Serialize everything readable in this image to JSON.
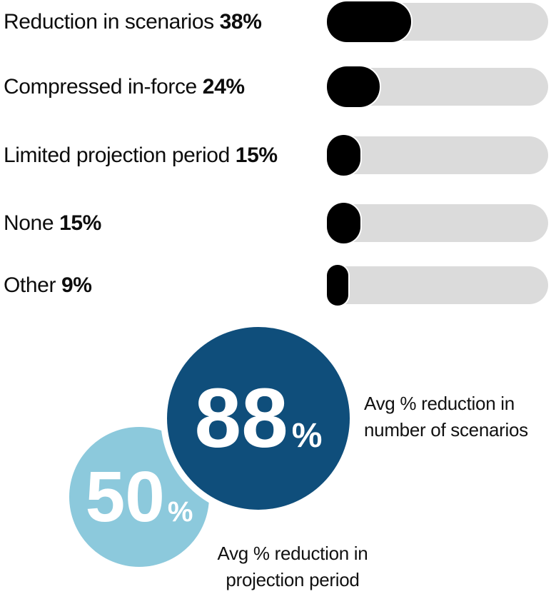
{
  "page": {
    "background": "#ffffff"
  },
  "chart_data": {
    "type": "bar",
    "orientation": "horizontal",
    "title": "",
    "xlabel": "",
    "ylabel": "",
    "xlim": [
      0,
      100
    ],
    "grid": false,
    "legend": false,
    "categories": [
      "Reduction in scenarios",
      "Compressed in-force",
      "Limited projection period",
      "None",
      "Other"
    ],
    "values": [
      38,
      24,
      15,
      15,
      9
    ],
    "items": [
      {
        "label": "Reduction in scenarios",
        "value": 38,
        "value_label": "38%"
      },
      {
        "label": "Compressed in-force",
        "value": 24,
        "value_label": "24%"
      },
      {
        "label": "Limited projection period",
        "value": 15,
        "value_label": "15%"
      },
      {
        "label": "None",
        "value": 15,
        "value_label": "15%"
      },
      {
        "label": "Other",
        "value": 9,
        "value_label": "9%"
      }
    ],
    "colors": {
      "track": "#dbdbdb",
      "fill": "#000000",
      "label_text": "#0d0d0d"
    },
    "callouts": [
      {
        "value": 88,
        "value_label": "88",
        "percent_sign": "%",
        "caption_line1": "Avg % reduction in",
        "caption_line2": "number of scenarios",
        "color": "#0f4e7b",
        "text_color": "#ffffff"
      },
      {
        "value": 50,
        "value_label": "50",
        "percent_sign": "%",
        "caption_line1": "Avg % reduction in",
        "caption_line2": "projection period",
        "color": "#8cc9dc",
        "text_color": "#ffffff"
      }
    ]
  }
}
